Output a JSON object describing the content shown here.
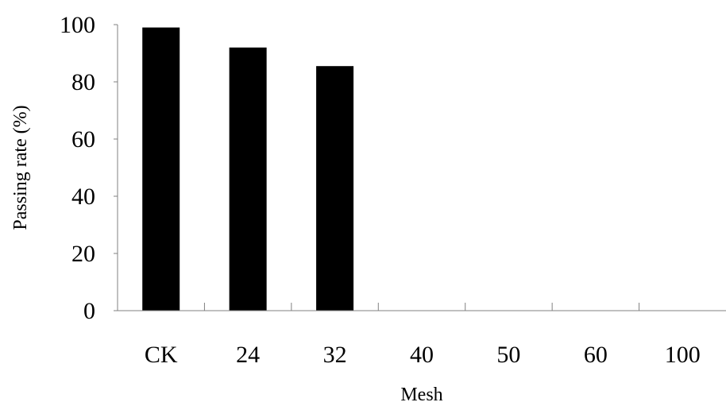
{
  "chart_data": {
    "type": "bar",
    "categories": [
      "CK",
      "24",
      "32",
      "40",
      "50",
      "60",
      "100"
    ],
    "values": [
      99,
      92,
      85.5,
      0,
      0,
      0,
      0
    ],
    "xlabel": "Mesh",
    "ylabel": "Passing rate (%)",
    "ylim": [
      0,
      100
    ],
    "yticks": [
      0,
      20,
      40,
      60,
      80,
      100
    ],
    "grid": false,
    "legend": "none",
    "bar_color": "#000000"
  }
}
